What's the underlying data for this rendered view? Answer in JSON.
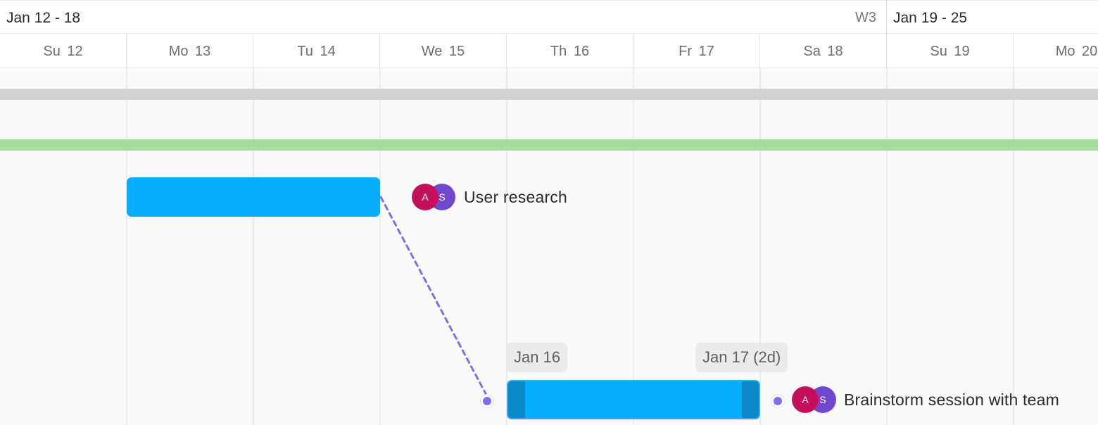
{
  "timeline": {
    "weeks": [
      {
        "label": "Jan 12 - 18",
        "week_number": "W3"
      },
      {
        "label": "Jan 19 - 25"
      }
    ],
    "days": [
      "Su 12",
      "Mo 13",
      "Tu 14",
      "We 15",
      "Th 16",
      "Fr 17",
      "Sa 18",
      "Su 19",
      "Mo 20"
    ]
  },
  "tasks": [
    {
      "name": "User research",
      "assignees": [
        "A",
        "S"
      ],
      "bar_color": "#06adfd"
    },
    {
      "name": "Brainstorm session with team",
      "assignees": [
        "A",
        "S"
      ],
      "bar_color": "#06adfd",
      "start_tooltip": "Jan 16",
      "end_tooltip": "Jan 17 (2d)",
      "selected": true
    }
  ],
  "summary_bars": [
    {
      "color": "#d3d3d3"
    },
    {
      "color": "#a3df9a"
    }
  ],
  "dependency": {
    "from": "User research",
    "to": "Brainstorm session with team",
    "line_color": "#7f6ff0"
  },
  "avatar_colors": {
    "A": "#c50f5d",
    "S": "#7048d0"
  }
}
